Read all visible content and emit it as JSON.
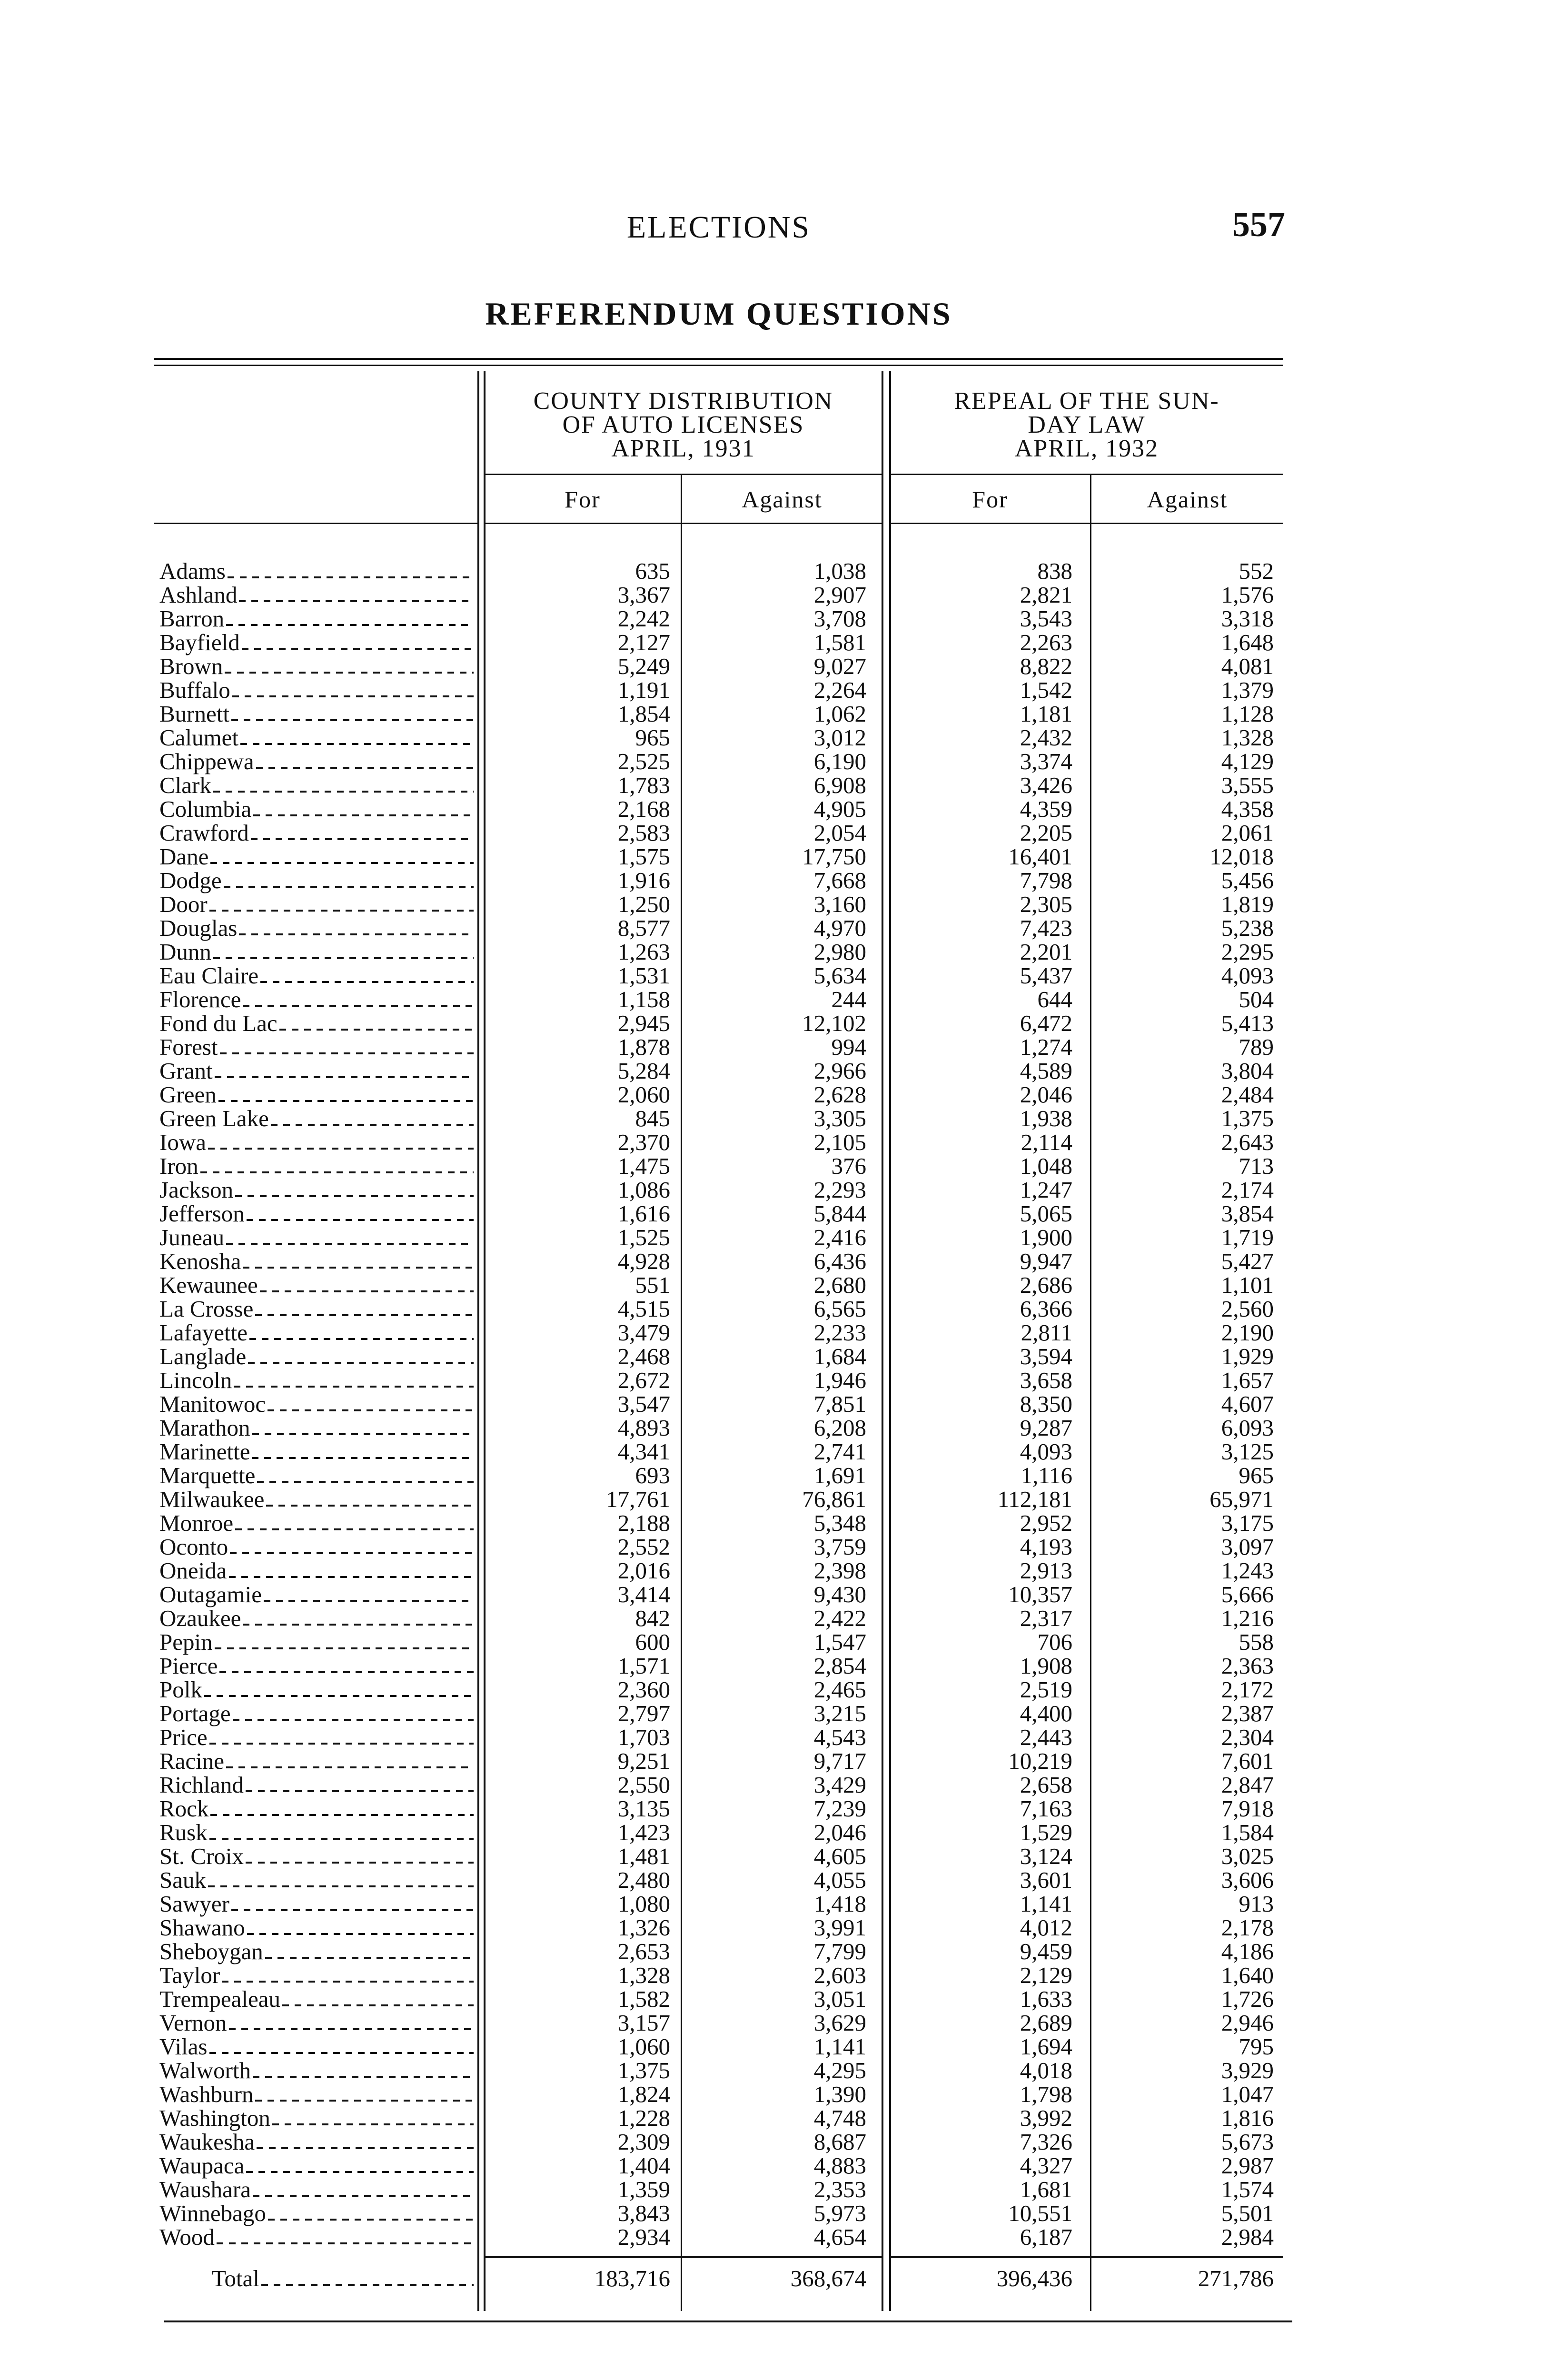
{
  "page": {
    "running_head": "ELECTIONS",
    "page_number": "557",
    "title": "REFERENDUM QUESTIONS"
  },
  "table": {
    "groups": [
      {
        "lines": [
          "COUNTY DISTRIBUTION",
          "OF AUTO LICENSES",
          "APRIL, 1931"
        ]
      },
      {
        "lines": [
          "REPEAL OF THE SUN-",
          "DAY LAW",
          "APRIL, 1932"
        ]
      }
    ],
    "columns": [
      "For",
      "Against",
      "For",
      "Against"
    ],
    "rows": [
      [
        "Adams",
        "635",
        "1,038",
        "838",
        "552"
      ],
      [
        "Ashland",
        "3,367",
        "2,907",
        "2,821",
        "1,576"
      ],
      [
        "Barron",
        "2,242",
        "3,708",
        "3,543",
        "3,318"
      ],
      [
        "Bayfield",
        "2,127",
        "1,581",
        "2,263",
        "1,648"
      ],
      [
        "Brown",
        "5,249",
        "9,027",
        "8,822",
        "4,081"
      ],
      [
        "Buffalo",
        "1,191",
        "2,264",
        "1,542",
        "1,379"
      ],
      [
        "Burnett",
        "1,854",
        "1,062",
        "1,181",
        "1,128"
      ],
      [
        "Calumet",
        "965",
        "3,012",
        "2,432",
        "1,328"
      ],
      [
        "Chippewa",
        "2,525",
        "6,190",
        "3,374",
        "4,129"
      ],
      [
        "Clark",
        "1,783",
        "6,908",
        "3,426",
        "3,555"
      ],
      [
        "Columbia",
        "2,168",
        "4,905",
        "4,359",
        "4,358"
      ],
      [
        "Crawford",
        "2,583",
        "2,054",
        "2,205",
        "2,061"
      ],
      [
        "Dane",
        "1,575",
        "17,750",
        "16,401",
        "12,018"
      ],
      [
        "Dodge",
        "1,916",
        "7,668",
        "7,798",
        "5,456"
      ],
      [
        "Door",
        "1,250",
        "3,160",
        "2,305",
        "1,819"
      ],
      [
        "Douglas",
        "8,577",
        "4,970",
        "7,423",
        "5,238"
      ],
      [
        "Dunn",
        "1,263",
        "2,980",
        "2,201",
        "2,295"
      ],
      [
        "Eau Claire",
        "1,531",
        "5,634",
        "5,437",
        "4,093"
      ],
      [
        "Florence",
        "1,158",
        "244",
        "644",
        "504"
      ],
      [
        "Fond du Lac",
        "2,945",
        "12,102",
        "6,472",
        "5,413"
      ],
      [
        "Forest",
        "1,878",
        "994",
        "1,274",
        "789"
      ],
      [
        "Grant",
        "5,284",
        "2,966",
        "4,589",
        "3,804"
      ],
      [
        "Green",
        "2,060",
        "2,628",
        "2,046",
        "2,484"
      ],
      [
        "Green Lake",
        "845",
        "3,305",
        "1,938",
        "1,375"
      ],
      [
        "Iowa",
        "2,370",
        "2,105",
        "2,114",
        "2,643"
      ],
      [
        "Iron",
        "1,475",
        "376",
        "1,048",
        "713"
      ],
      [
        "Jackson",
        "1,086",
        "2,293",
        "1,247",
        "2,174"
      ],
      [
        "Jefferson",
        "1,616",
        "5,844",
        "5,065",
        "3,854"
      ],
      [
        "Juneau",
        "1,525",
        "2,416",
        "1,900",
        "1,719"
      ],
      [
        "Kenosha",
        "4,928",
        "6,436",
        "9,947",
        "5,427"
      ],
      [
        "Kewaunee",
        "551",
        "2,680",
        "2,686",
        "1,101"
      ],
      [
        "La Crosse",
        "4,515",
        "6,565",
        "6,366",
        "2,560"
      ],
      [
        "Lafayette",
        "3,479",
        "2,233",
        "2,811",
        "2,190"
      ],
      [
        "Langlade",
        "2,468",
        "1,684",
        "3,594",
        "1,929"
      ],
      [
        "Lincoln",
        "2,672",
        "1,946",
        "3,658",
        "1,657"
      ],
      [
        "Manitowoc",
        "3,547",
        "7,851",
        "8,350",
        "4,607"
      ],
      [
        "Marathon",
        "4,893",
        "6,208",
        "9,287",
        "6,093"
      ],
      [
        "Marinette",
        "4,341",
        "2,741",
        "4,093",
        "3,125"
      ],
      [
        "Marquette",
        "693",
        "1,691",
        "1,116",
        "965"
      ],
      [
        "Milwaukee",
        "17,761",
        "76,861",
        "112,181",
        "65,971"
      ],
      [
        "Monroe",
        "2,188",
        "5,348",
        "2,952",
        "3,175"
      ],
      [
        "Oconto",
        "2,552",
        "3,759",
        "4,193",
        "3,097"
      ],
      [
        "Oneida",
        "2,016",
        "2,398",
        "2,913",
        "1,243"
      ],
      [
        "Outagamie",
        "3,414",
        "9,430",
        "10,357",
        "5,666"
      ],
      [
        "Ozaukee",
        "842",
        "2,422",
        "2,317",
        "1,216"
      ],
      [
        "Pepin",
        "600",
        "1,547",
        "706",
        "558"
      ],
      [
        "Pierce",
        "1,571",
        "2,854",
        "1,908",
        "2,363"
      ],
      [
        "Polk",
        "2,360",
        "2,465",
        "2,519",
        "2,172"
      ],
      [
        "Portage",
        "2,797",
        "3,215",
        "4,400",
        "2,387"
      ],
      [
        "Price",
        "1,703",
        "4,543",
        "2,443",
        "2,304"
      ],
      [
        "Racine",
        "9,251",
        "9,717",
        "10,219",
        "7,601"
      ],
      [
        "Richland",
        "2,550",
        "3,429",
        "2,658",
        "2,847"
      ],
      [
        "Rock",
        "3,135",
        "7,239",
        "7,163",
        "7,918"
      ],
      [
        "Rusk",
        "1,423",
        "2,046",
        "1,529",
        "1,584"
      ],
      [
        "St. Croix",
        "1,481",
        "4,605",
        "3,124",
        "3,025"
      ],
      [
        "Sauk",
        "2,480",
        "4,055",
        "3,601",
        "3,606"
      ],
      [
        "Sawyer",
        "1,080",
        "1,418",
        "1,141",
        "913"
      ],
      [
        "Shawano",
        "1,326",
        "3,991",
        "4,012",
        "2,178"
      ],
      [
        "Sheboygan",
        "2,653",
        "7,799",
        "9,459",
        "4,186"
      ],
      [
        "Taylor",
        "1,328",
        "2,603",
        "2,129",
        "1,640"
      ],
      [
        "Trempealeau",
        "1,582",
        "3,051",
        "1,633",
        "1,726"
      ],
      [
        "Vernon",
        "3,157",
        "3,629",
        "2,689",
        "2,946"
      ],
      [
        "Vilas",
        "1,060",
        "1,141",
        "1,694",
        "795"
      ],
      [
        "Walworth",
        "1,375",
        "4,295",
        "4,018",
        "3,929"
      ],
      [
        "Washburn",
        "1,824",
        "1,390",
        "1,798",
        "1,047"
      ],
      [
        "Washington",
        "1,228",
        "4,748",
        "3,992",
        "1,816"
      ],
      [
        "Waukesha",
        "2,309",
        "8,687",
        "7,326",
        "5,673"
      ],
      [
        "Waupaca",
        "1,404",
        "4,883",
        "4,327",
        "2,987"
      ],
      [
        "Waushara",
        "1,359",
        "2,353",
        "1,681",
        "1,574"
      ],
      [
        "Winnebago",
        "3,843",
        "5,973",
        "10,551",
        "5,501"
      ],
      [
        "Wood",
        "2,934",
        "4,654",
        "6,187",
        "2,984"
      ]
    ],
    "total": [
      "Total",
      "183,716",
      "368,674",
      "396,436",
      "271,786"
    ]
  }
}
